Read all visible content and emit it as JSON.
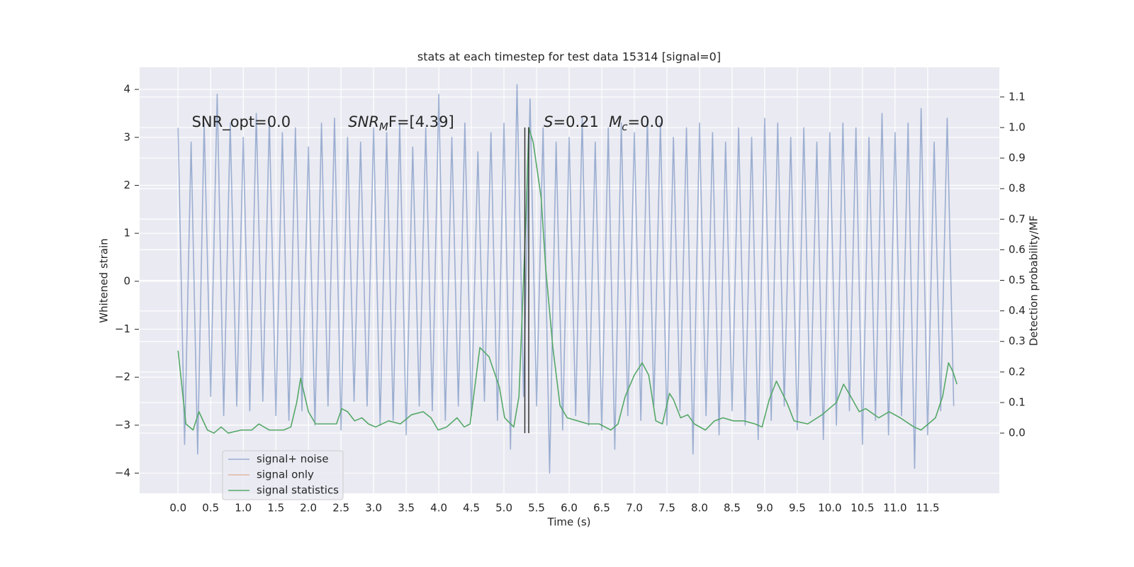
{
  "chart_data": {
    "type": "line",
    "title": "stats at each timestep for test data 15314 [signal=0]",
    "xlabel": "Time (s)",
    "ylabel": "Whitened strain",
    "y2label": "Detection probability/MF",
    "xlim": [
      -0.59,
      12.6
    ],
    "ylim": [
      -4.42,
      4.46
    ],
    "y2lim": [
      -0.197,
      1.197
    ],
    "grid": true,
    "legend": "lower left",
    "xticks": [
      {
        "value": 0,
        "label": "0.0"
      },
      0.5,
      {
        "value": 1,
        "label": "1.0"
      },
      1.5,
      {
        "value": 2,
        "label": "2.0"
      },
      2.5,
      {
        "value": 3,
        "label": "3.0"
      },
      3.5,
      {
        "value": 4,
        "label": "4.0"
      },
      4.5,
      {
        "value": 5,
        "label": "5.0"
      },
      5.5,
      {
        "value": 6,
        "label": "6.0"
      },
      6.5,
      {
        "value": 7,
        "label": "7.0"
      },
      7.5,
      {
        "value": 8,
        "label": "8.0"
      },
      8.5,
      {
        "value": 9,
        "label": "9.0"
      },
      9.5,
      {
        "value": 10,
        "label": "10.0"
      },
      10.5,
      {
        "value": 11,
        "label": "11.0"
      },
      11.5
    ],
    "yticks": [
      {
        "value": -4,
        "label": "−4"
      },
      {
        "value": -3,
        "label": "−3"
      },
      {
        "value": -2,
        "label": "−2"
      },
      {
        "value": -1,
        "label": "−1"
      },
      0,
      1,
      2,
      3,
      4
    ],
    "y2ticks": [
      {
        "value": 0,
        "label": "0.0"
      },
      0.1,
      0.2,
      0.3,
      0.4,
      0.5,
      0.6,
      0.7,
      0.8,
      0.9,
      {
        "value": 1,
        "label": "1.0"
      },
      1.1
    ],
    "series": [
      {
        "name": "signal+ noise",
        "color": "#4c72b0",
        "opacity": 0.5,
        "x": [
          0,
          0.1,
          0.2,
          0.3,
          0.4,
          0.5,
          0.6,
          0.7,
          0.8,
          0.9,
          1,
          1.1,
          1.2,
          1.3,
          1.4,
          1.5,
          1.6,
          1.7,
          1.8,
          1.9,
          2,
          2.1,
          2.2,
          2.3,
          2.4,
          2.5,
          2.6,
          2.7,
          2.8,
          2.9,
          3,
          3.1,
          3.2,
          3.3,
          3.4,
          3.5,
          3.6,
          3.7,
          3.8,
          3.9,
          4,
          4.1,
          4.2,
          4.3,
          4.4,
          4.5,
          4.6,
          4.7,
          4.8,
          4.9,
          5,
          5.1,
          5.2,
          5.3,
          5.4,
          5.5,
          5.6,
          5.7,
          5.8,
          5.9,
          6,
          6.1,
          6.2,
          6.3,
          6.4,
          6.5,
          6.6,
          6.7,
          6.8,
          6.9,
          7,
          7.1,
          7.2,
          7.3,
          7.4,
          7.5,
          7.6,
          7.7,
          7.8,
          7.9,
          8,
          8.1,
          8.2,
          8.3,
          8.4,
          8.5,
          8.6,
          8.7,
          8.8,
          8.9,
          9,
          9.1,
          9.2,
          9.3,
          9.4,
          9.5,
          9.6,
          9.7,
          9.8,
          9.9,
          10,
          10.1,
          10.2,
          10.3,
          10.4,
          10.5,
          10.6,
          10.7,
          10.8,
          10.9,
          11,
          11.1,
          11.2,
          11.3,
          11.4,
          11.5,
          11.6,
          11.7,
          11.8,
          11.9
        ],
        "values": [
          3.2,
          -3.4,
          2.9,
          -3.6,
          3.3,
          -2.4,
          3.9,
          -2.8,
          3.3,
          -2.6,
          3.0,
          -2.7,
          3.5,
          -2.5,
          3.4,
          -2.8,
          3.1,
          -2.9,
          3.2,
          -2.7,
          2.8,
          -3.0,
          3.3,
          -2.6,
          3.4,
          -3.1,
          3.0,
          -2.5,
          2.9,
          -2.6,
          3.2,
          -3.0,
          3.1,
          -2.9,
          3.3,
          -3.2,
          2.8,
          -2.6,
          3.2,
          -2.7,
          3.9,
          -2.9,
          3.0,
          -2.6,
          3.3,
          -2.8,
          2.7,
          -2.5,
          3.1,
          -2.9,
          3.3,
          -3.5,
          4.1,
          -2.4,
          3.8,
          -2.6,
          3.2,
          -4.0,
          2.9,
          -3.1,
          3.0,
          -2.8,
          3.4,
          -3.0,
          2.9,
          -3.1,
          3.2,
          -3.5,
          3.3,
          -2.8,
          3.1,
          -2.9,
          3.4,
          -2.6,
          3.3,
          -3.0,
          3.0,
          -2.7,
          3.2,
          -3.6,
          3.3,
          -2.8,
          3.1,
          -3.2,
          2.9,
          -2.7,
          3.2,
          -3.0,
          3.0,
          -3.3,
          3.4,
          -2.9,
          3.3,
          -2.6,
          3.0,
          -3.1,
          3.2,
          -2.8,
          2.9,
          -3.3,
          3.1,
          -3.0,
          3.3,
          -2.7,
          3.2,
          -3.4,
          3.0,
          -2.9,
          3.5,
          -3.2,
          3.1,
          -2.8,
          3.3,
          -3.9,
          3.6,
          -3.2,
          2.9,
          -2.7,
          3.4,
          -2.6
        ]
      },
      {
        "name": "signal only",
        "color": "#dd8452",
        "opacity": 0.5,
        "x": [],
        "values": []
      },
      {
        "name": "signal statistics",
        "color": "#55a868",
        "opacity": 1,
        "axis": "y2",
        "x": [
          0,
          0.12,
          0.23,
          0.32,
          0.45,
          0.55,
          0.66,
          0.77,
          0.97,
          1.13,
          1.24,
          1.4,
          1.62,
          1.73,
          1.82,
          1.88,
          2,
          2.11,
          2.27,
          2.43,
          2.51,
          2.6,
          2.71,
          2.82,
          2.92,
          3.03,
          3.23,
          3.41,
          3.58,
          3.76,
          3.88,
          3.99,
          4.12,
          4.28,
          4.39,
          4.48,
          4.63,
          4.77,
          4.93,
          5.01,
          5.15,
          5.23,
          5.34,
          5.38,
          5.45,
          5.57,
          5.64,
          5.75,
          5.86,
          5.97,
          6.13,
          6.29,
          6.46,
          6.64,
          6.75,
          6.86,
          7,
          7.12,
          7.22,
          7.33,
          7.43,
          7.54,
          7.6,
          7.71,
          7.82,
          7.92,
          8.09,
          8.23,
          8.36,
          8.52,
          8.68,
          8.85,
          8.96,
          9.07,
          9.18,
          9.34,
          9.45,
          9.66,
          9.88,
          10.1,
          10.21,
          10.32,
          10.45,
          10.55,
          10.75,
          10.91,
          11.08,
          11.29,
          11.4,
          11.62,
          11.73,
          11.82,
          11.89,
          11.95
        ],
        "values": [
          0.27,
          0.03,
          0.01,
          0.07,
          0.01,
          0.0,
          0.02,
          0.0,
          0.01,
          0.01,
          0.03,
          0.01,
          0.01,
          0.02,
          0.1,
          0.18,
          0.07,
          0.03,
          0.03,
          0.03,
          0.08,
          0.07,
          0.04,
          0.05,
          0.03,
          0.02,
          0.04,
          0.03,
          0.06,
          0.07,
          0.05,
          0.01,
          0.02,
          0.05,
          0.02,
          0.03,
          0.28,
          0.25,
          0.15,
          0.05,
          0.02,
          0.12,
          0.72,
          1.0,
          0.95,
          0.77,
          0.54,
          0.28,
          0.09,
          0.05,
          0.04,
          0.03,
          0.03,
          0.01,
          0.03,
          0.12,
          0.19,
          0.23,
          0.19,
          0.04,
          0.03,
          0.13,
          0.11,
          0.05,
          0.06,
          0.03,
          0.01,
          0.04,
          0.05,
          0.04,
          0.04,
          0.03,
          0.02,
          0.11,
          0.17,
          0.1,
          0.04,
          0.03,
          0.06,
          0.1,
          0.16,
          0.12,
          0.07,
          0.08,
          0.05,
          0.07,
          0.05,
          0.02,
          0.01,
          0.05,
          0.12,
          0.23,
          0.2,
          0.16
        ]
      }
    ],
    "vertical_lines": {
      "x": [
        5.32,
        5.38
      ],
      "y2": [
        0,
        1
      ],
      "color": "#333333"
    },
    "annotations": [
      {
        "x": 0.21,
        "y": 3.31,
        "text": "SNR_opt=0.0"
      },
      {
        "x": 2.61,
        "y": 3.31,
        "text": "SNR",
        "sub": "M",
        "rest": "F=[4.39]"
      },
      {
        "x": 5.61,
        "y": 3.31,
        "text": "S",
        "rest": "=0.21"
      },
      {
        "x": 6.61,
        "y": 3.31,
        "text": "M",
        "sub": "c",
        "rest": "=0.0"
      }
    ]
  }
}
